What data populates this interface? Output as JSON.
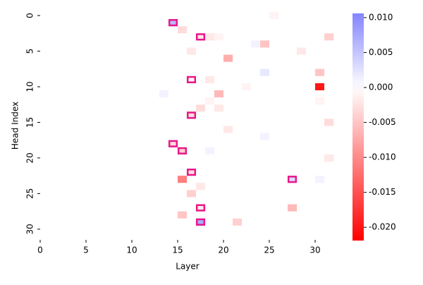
{
  "chart_data": {
    "type": "heatmap",
    "xlabel": "Layer",
    "ylabel": "Head Index",
    "xlim": [
      0,
      32
    ],
    "xticks": [
      0,
      5,
      10,
      15,
      20,
      25,
      30
    ],
    "ylim": [
      0,
      32
    ],
    "yticks": [
      0,
      5,
      10,
      15,
      20,
      25,
      30
    ],
    "colormap": "bwr",
    "clim": [
      -0.0219,
      0.0106
    ],
    "colorbar_ticks": [
      {
        "value": 0.01,
        "label": "0.010"
      },
      {
        "value": 0.005,
        "label": "0.005"
      },
      {
        "value": 0,
        "label": "0.000"
      },
      {
        "value": -0.005,
        "label": "-0.005"
      },
      {
        "value": -0.01,
        "label": "-0.010"
      },
      {
        "value": -0.015,
        "label": "-0.015"
      },
      {
        "value": -0.02,
        "label": "-0.020"
      }
    ],
    "highlight_color": "#e8178a",
    "highlights": [
      {
        "layer": 14,
        "head": 1
      },
      {
        "layer": 17,
        "head": 3
      },
      {
        "layer": 16,
        "head": 9
      },
      {
        "layer": 16,
        "head": 14
      },
      {
        "layer": 14,
        "head": 18
      },
      {
        "layer": 15,
        "head": 19
      },
      {
        "layer": 16,
        "head": 22
      },
      {
        "layer": 27,
        "head": 23
      },
      {
        "layer": 17,
        "head": 27
      },
      {
        "layer": 17,
        "head": 29
      }
    ],
    "values": [
      [
        0,
        0,
        0,
        0,
        0,
        0,
        0,
        0,
        0,
        0,
        0,
        0,
        0,
        0,
        0,
        0,
        0,
        0,
        0,
        0,
        0,
        0,
        0,
        0,
        0,
        -0.001,
        0,
        0,
        0,
        0,
        0,
        0
      ],
      [
        0,
        0,
        0,
        0,
        0,
        0,
        0,
        0,
        0,
        0,
        0,
        0,
        0,
        0,
        0.006,
        0,
        0,
        0,
        0,
        0,
        0,
        0,
        0,
        0,
        0,
        0,
        0,
        0,
        0,
        0,
        0,
        0
      ],
      [
        0,
        0,
        0,
        0,
        0,
        0,
        0,
        0,
        0,
        0,
        0,
        0,
        0,
        0,
        0,
        -0.003,
        0,
        0,
        0,
        0,
        0,
        0,
        0,
        0,
        0,
        0,
        0,
        0,
        0,
        0,
        0,
        0
      ],
      [
        0,
        0,
        0,
        0,
        0,
        0,
        0,
        0,
        0,
        0,
        0,
        0,
        0,
        0,
        0,
        0,
        0,
        -0.002,
        -0.002,
        -0.001,
        0,
        0,
        0,
        0,
        0,
        0,
        0,
        0,
        0,
        0,
        0,
        -0.004
      ],
      [
        0,
        0,
        0,
        0,
        0,
        0,
        0,
        0,
        0,
        0,
        0,
        0,
        0,
        0,
        0,
        0,
        0,
        0,
        0,
        0,
        0,
        0,
        0,
        0.001,
        -0.005,
        0,
        0,
        0,
        0,
        0,
        0,
        0
      ],
      [
        0,
        0,
        0,
        0,
        0,
        0,
        0,
        0,
        0,
        0,
        0,
        0,
        0,
        0,
        0,
        0,
        -0.002,
        0,
        0,
        0,
        0,
        0,
        0,
        0,
        0,
        0,
        0,
        0,
        -0.002,
        0,
        0,
        0
      ],
      [
        0,
        0,
        0,
        0,
        0,
        0,
        0,
        0,
        0,
        0,
        0,
        0,
        0,
        0,
        0,
        0,
        0,
        0,
        0,
        0,
        -0.007,
        0,
        0,
        0,
        0,
        0,
        0,
        0,
        0,
        0,
        0,
        0
      ],
      [
        0,
        0,
        0,
        0,
        0,
        0,
        0,
        0,
        0,
        0,
        0,
        0,
        0,
        0,
        0,
        0,
        0,
        0,
        0,
        0,
        0,
        0,
        0,
        0,
        0,
        0,
        0,
        0,
        0,
        0,
        0,
        0
      ],
      [
        0,
        0,
        0,
        0,
        0,
        0,
        0,
        0,
        0,
        0,
        0,
        0,
        0,
        0,
        0,
        0,
        0,
        0,
        0,
        0,
        0,
        0,
        0,
        0,
        0.002,
        0,
        0,
        0,
        0,
        0,
        -0.005,
        0
      ],
      [
        0,
        0,
        0,
        0,
        0,
        0,
        0,
        0,
        0,
        0,
        0,
        0,
        0,
        0,
        0,
        0,
        -0.001,
        0,
        -0.002,
        0,
        0,
        0,
        0,
        0,
        0,
        0,
        0,
        0,
        0,
        0,
        0,
        0
      ],
      [
        0,
        0,
        0,
        0,
        0,
        0,
        0,
        0,
        0,
        0,
        0,
        0,
        0,
        0,
        0,
        0,
        0,
        0,
        0,
        0,
        0,
        0,
        -0.001,
        0,
        0,
        0,
        0,
        0,
        0,
        0,
        -0.02,
        0
      ],
      [
        0,
        0,
        0,
        0,
        0,
        0,
        0,
        0,
        0,
        0,
        0,
        0,
        0,
        0.001,
        0,
        0,
        0,
        0,
        0,
        -0.006,
        0,
        0,
        0,
        0,
        0,
        0,
        0,
        0,
        0,
        0,
        0,
        0
      ],
      [
        0,
        0,
        0,
        0,
        0,
        0,
        0,
        0,
        0,
        0,
        0,
        0,
        0,
        0,
        0,
        0,
        0,
        0,
        -0.001,
        0,
        0,
        0,
        0,
        0,
        0,
        0,
        0,
        0,
        0,
        0,
        -0.001,
        0
      ],
      [
        0,
        0,
        0,
        0,
        0,
        0,
        0,
        0,
        0,
        0,
        0,
        0,
        0,
        0,
        0,
        0,
        0,
        -0.003,
        0,
        -0.002,
        0,
        0,
        0,
        0,
        0,
        0,
        0,
        0,
        0,
        0,
        0,
        0
      ],
      [
        0,
        0,
        0,
        0,
        0,
        0,
        0,
        0,
        0,
        0,
        0,
        0,
        0,
        0,
        0,
        0,
        -0.003,
        0,
        0,
        0,
        0,
        0,
        0,
        0,
        0,
        0,
        0,
        0,
        0,
        0,
        0,
        0
      ],
      [
        0,
        0,
        0,
        0,
        0,
        0,
        0,
        0,
        0,
        0,
        0,
        0,
        0,
        0,
        0,
        0,
        0,
        0,
        0,
        0,
        0,
        0,
        0,
        0,
        0,
        0,
        0,
        0,
        0,
        0,
        0,
        -0.003
      ],
      [
        0,
        0,
        0,
        0,
        0,
        0,
        0,
        0,
        0,
        0,
        0,
        0,
        0,
        0,
        0,
        0,
        0,
        0,
        0,
        0,
        -0.002,
        0,
        0,
        0,
        0,
        0,
        0,
        0,
        0,
        0,
        0,
        0
      ],
      [
        0,
        0,
        0,
        0,
        0,
        0,
        0,
        0,
        0,
        0,
        0,
        0,
        0,
        0,
        0,
        0,
        0,
        0,
        0,
        0,
        0,
        0,
        0,
        0,
        0.001,
        0,
        0,
        0,
        0,
        0,
        0,
        0
      ],
      [
        0,
        0,
        0,
        0,
        0,
        0,
        0,
        0,
        0,
        0,
        0,
        0,
        0,
        0,
        -0.003,
        0,
        0,
        0,
        0,
        0,
        0,
        0,
        0,
        0,
        0,
        0,
        0,
        0,
        0,
        0,
        0,
        0
      ],
      [
        0,
        0,
        0,
        0,
        0,
        0,
        0,
        0,
        0,
        0,
        0,
        0,
        0,
        0,
        0,
        -0.004,
        0,
        0,
        0.001,
        0,
        0,
        0,
        0,
        0,
        0,
        0,
        0,
        0,
        0,
        0,
        0,
        0
      ],
      [
        0,
        0,
        0,
        0,
        0,
        0,
        0,
        0,
        0,
        0,
        0,
        0,
        0,
        0,
        0,
        0,
        0,
        0,
        0,
        0,
        0,
        0,
        0,
        0,
        0,
        0,
        0,
        0,
        0,
        0,
        0,
        -0.002
      ],
      [
        0,
        0,
        0,
        0,
        0,
        0,
        0,
        0,
        0,
        0,
        0,
        0,
        0,
        0,
        0,
        0,
        0,
        0,
        0,
        0,
        0,
        0,
        0,
        0,
        0,
        0,
        0,
        0,
        0,
        0,
        0,
        0
      ],
      [
        0,
        0,
        0,
        0,
        0,
        0,
        0,
        0,
        0,
        0,
        0,
        0,
        0,
        0,
        0,
        0,
        -0.003,
        0,
        0,
        0,
        0,
        0,
        0,
        0,
        0,
        0,
        0,
        0,
        0,
        0,
        0,
        0
      ],
      [
        0,
        0,
        0,
        0,
        0,
        0,
        0,
        0,
        0,
        0,
        0,
        0,
        0,
        0,
        0,
        -0.011,
        0,
        0,
        0,
        0,
        0,
        0,
        0,
        0,
        0,
        0,
        0,
        0.003,
        0,
        0,
        0.001,
        0
      ],
      [
        0,
        0,
        0,
        0,
        0,
        0,
        0,
        0,
        0,
        0,
        0,
        0,
        0,
        0,
        0,
        0,
        0,
        -0.002,
        0,
        0,
        0,
        0,
        0,
        0,
        0,
        0,
        0,
        0,
        0,
        0,
        0,
        0
      ],
      [
        0,
        0,
        0,
        0,
        0,
        0,
        0,
        0,
        0,
        0,
        0,
        0,
        0,
        0,
        0,
        0,
        -0.004,
        0,
        0,
        0,
        0,
        0,
        0,
        0,
        0,
        0,
        0,
        0,
        0,
        0,
        0,
        0
      ],
      [
        0,
        0,
        0,
        0,
        0,
        0,
        0,
        0,
        0,
        0,
        0,
        0,
        0,
        0,
        0,
        0,
        0,
        0,
        0,
        0,
        0,
        0,
        0,
        0,
        0,
        0,
        0,
        0,
        0,
        0,
        0,
        0
      ],
      [
        0,
        0,
        0,
        0,
        0,
        0,
        0,
        0,
        0,
        0,
        0,
        0,
        0,
        0,
        0,
        0,
        0,
        -0.002,
        0,
        0,
        0,
        0,
        0,
        0,
        0,
        0,
        0,
        -0.006,
        0,
        0,
        0,
        0
      ],
      [
        0,
        0,
        0,
        0,
        0,
        0,
        0,
        0,
        0,
        0,
        0,
        0,
        0,
        0,
        0,
        -0.005,
        0,
        0,
        0,
        0,
        0,
        0,
        0,
        0,
        0,
        0,
        0,
        0,
        0,
        0,
        0,
        0
      ],
      [
        0,
        0,
        0,
        0,
        0,
        0,
        0,
        0,
        0,
        0,
        0,
        0,
        0,
        0,
        0,
        0,
        0,
        0.007,
        0,
        0,
        0,
        -0.004,
        0,
        0,
        0,
        0,
        0,
        0,
        0,
        0,
        0,
        0
      ],
      [
        0,
        0,
        0,
        0,
        0,
        0,
        0,
        0,
        0,
        0,
        0,
        0,
        0,
        0,
        0,
        0,
        0,
        0,
        0,
        0,
        0,
        0,
        0,
        0,
        0,
        0,
        0,
        0,
        0,
        0,
        0,
        0
      ],
      [
        0,
        0,
        0,
        0,
        0,
        0,
        0,
        0,
        0,
        0,
        0,
        0,
        0,
        0,
        0,
        0,
        0,
        0,
        0,
        0,
        0,
        0,
        0,
        0,
        0,
        0,
        0,
        0,
        0,
        0,
        0,
        0
      ]
    ]
  }
}
